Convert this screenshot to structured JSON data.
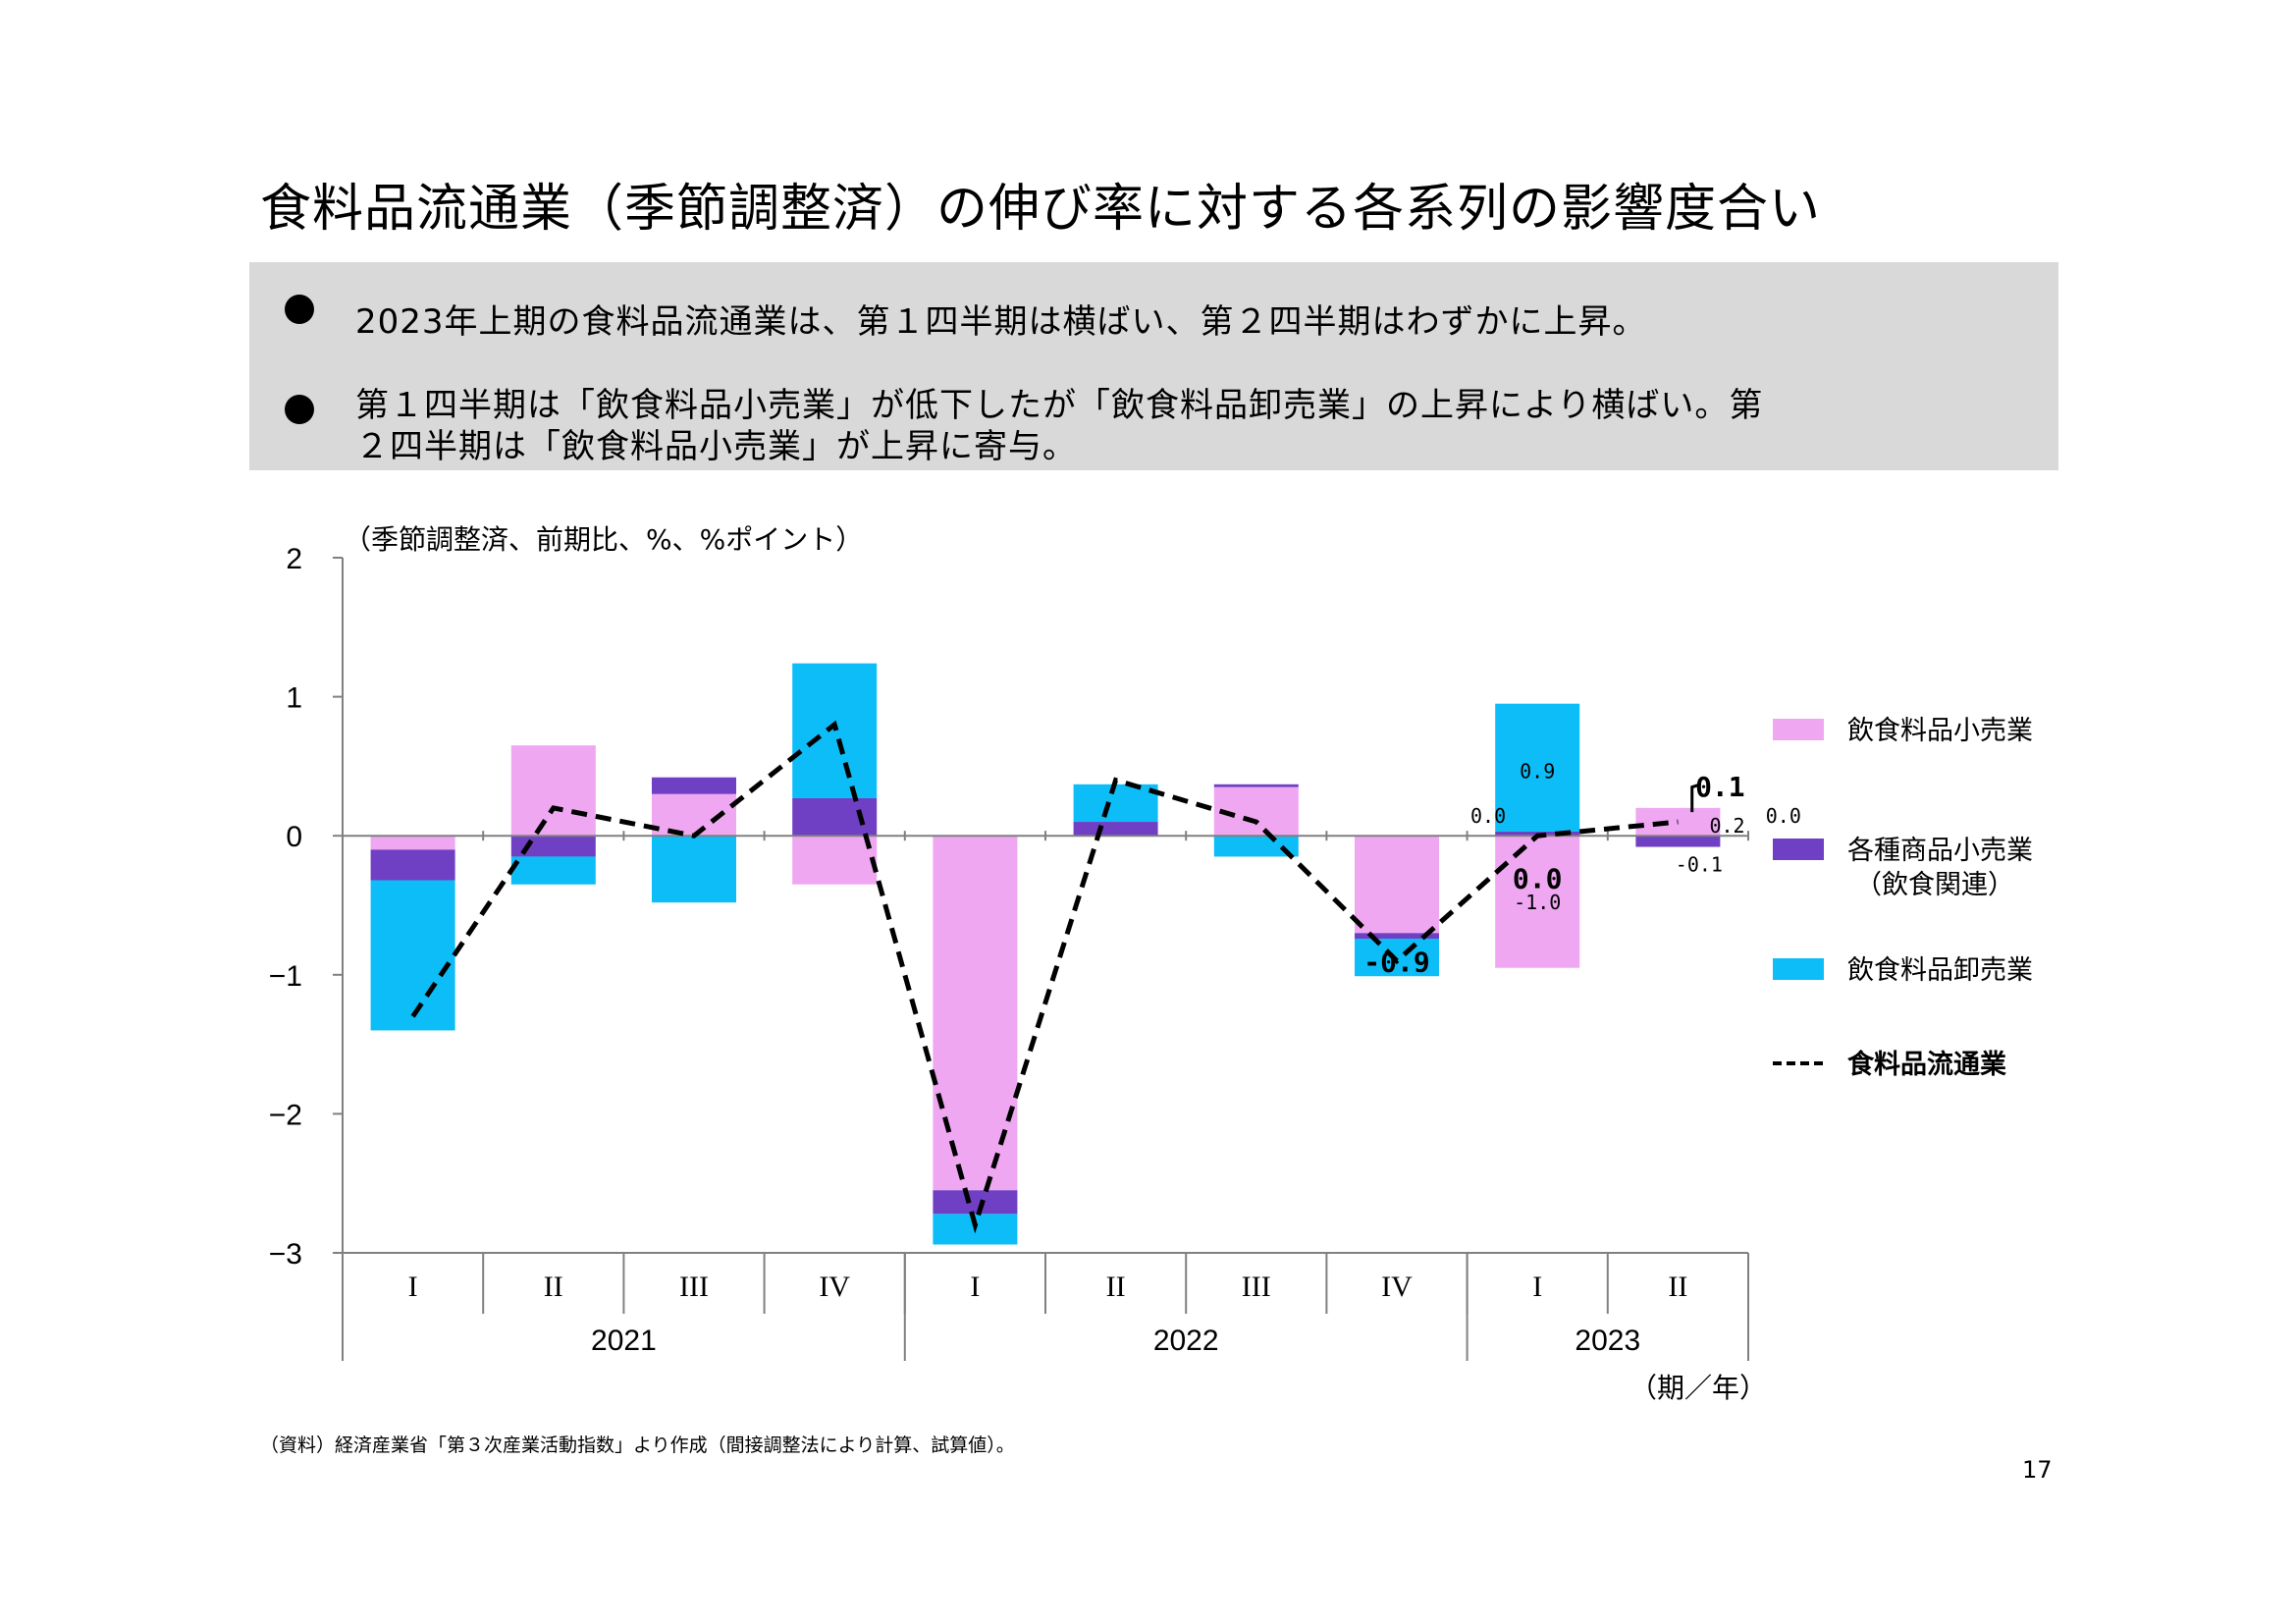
{
  "title": "食料品流通業（季節調整済）の伸び率に対する各系列の影響度合い",
  "summary": {
    "bullets": [
      {
        "lines": [
          "2023年上期の食料品流通業は、第１四半期は横ばい、第２四半期はわずかに上昇。"
        ]
      },
      {
        "lines": [
          "第１四半期は「飲食料品小売業」が低下したが「飲食料品卸売業」の上昇により横ばい。第",
          "２四半期は「飲食料品小売業」が上昇に寄与。"
        ]
      }
    ]
  },
  "unit_label": "（季節調整済、前期比、%、%ポイント）",
  "period_unit_label": "（期／年）",
  "footnote": "（資料）経済産業省「第３次産業活動指数」より作成（間接調整法により計算、試算値）。",
  "page_number": "17",
  "colors": {
    "retail": "#efa7f2",
    "general": "#6f3fc4",
    "wholesale": "#0dbdf7",
    "axis": "#808080"
  },
  "chart_data": {
    "type": "bar",
    "stacked": true,
    "ylim": [
      -3,
      2
    ],
    "yticks": [
      2,
      1,
      0,
      -1,
      -2,
      -3
    ],
    "grid": false,
    "legend_position": "right",
    "categories": [
      "I",
      "II",
      "III",
      "IV",
      "I",
      "II",
      "III",
      "IV",
      "I",
      "II"
    ],
    "years": [
      {
        "label": "2021",
        "span": 4
      },
      {
        "label": "2022",
        "span": 4
      },
      {
        "label": "2023",
        "span": 2
      }
    ],
    "series": [
      {
        "name": "飲食料品小売業",
        "type": "bar",
        "color": "#efa7f2",
        "values": [
          -0.1,
          0.65,
          0.3,
          -0.35,
          -2.55,
          0.0,
          0.35,
          -0.7,
          -0.95,
          0.2
        ]
      },
      {
        "name": "各種商品小売業（飲食関連）",
        "type": "bar",
        "color": "#6f3fc4",
        "values": [
          -0.22,
          -0.15,
          0.12,
          0.27,
          -0.17,
          0.1,
          0.02,
          -0.04,
          0.03,
          -0.08
        ]
      },
      {
        "name": "飲食料品卸売業",
        "type": "bar",
        "color": "#0dbdf7",
        "values": [
          -1.08,
          -0.2,
          -0.48,
          0.97,
          -0.22,
          0.27,
          -0.15,
          -0.27,
          0.92,
          0.0
        ]
      },
      {
        "name": "食料品流通業",
        "type": "line",
        "style": "dashed",
        "color": "#000000",
        "values": [
          -1.3,
          0.2,
          0.0,
          0.8,
          -2.8,
          0.4,
          0.1,
          -0.9,
          0.0,
          0.1
        ]
      }
    ],
    "legend": [
      {
        "label": "飲食料品小売業",
        "kind": "box",
        "color": "#efa7f2"
      },
      {
        "label": "各種商品小売業",
        "label2": "（飲食関連）",
        "kind": "box",
        "color": "#6f3fc4"
      },
      {
        "label": "飲食料品卸売業",
        "kind": "box",
        "color": "#0dbdf7"
      },
      {
        "label": "食料品流通業",
        "kind": "dash",
        "color": "#000000"
      }
    ],
    "annotations": [
      {
        "text": "-0.9",
        "x": 7,
        "y": -0.9,
        "bold": true,
        "big": true
      },
      {
        "text": "0.0",
        "x": 8,
        "y": -0.3,
        "bold": true,
        "big": true
      },
      {
        "text": "0.0",
        "x": 7.65,
        "y": 0.15,
        "bold": false,
        "big": false
      },
      {
        "text": "0.9",
        "x": 8,
        "y": 0.47,
        "bold": false,
        "big": false
      },
      {
        "text": "-1.0",
        "x": 8,
        "y": -0.47,
        "bold": false,
        "big": false
      },
      {
        "text": "0.1",
        "x": 9.3,
        "y": 0.36,
        "bold": true,
        "big": true
      },
      {
        "text": "0.2",
        "x": 9.35,
        "y": 0.08,
        "bold": false,
        "big": false
      },
      {
        "text": "0.0",
        "x": 9.75,
        "y": 0.15,
        "bold": false,
        "big": false
      },
      {
        "text": "-0.1",
        "x": 9.15,
        "y": -0.2,
        "bold": false,
        "big": false
      }
    ]
  }
}
